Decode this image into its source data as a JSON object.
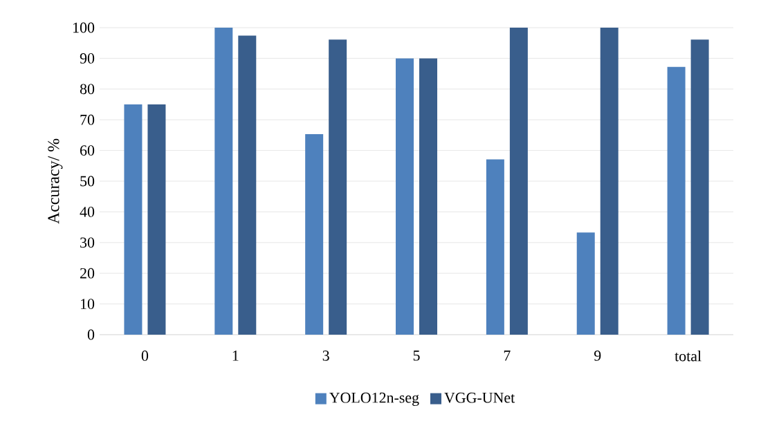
{
  "chart_data": {
    "type": "bar",
    "ylabel": "Accuracy/ %",
    "categories": [
      "0",
      "1",
      "3",
      "5",
      "7",
      "9",
      "total"
    ],
    "series": [
      {
        "name": "YOLO12n-seg",
        "color": "#4e81bd",
        "values": [
          75,
          100,
          65.3,
          90,
          57.1,
          33.3,
          87.2
        ]
      },
      {
        "name": "VGG-UNet",
        "color": "#395e8c",
        "values": [
          75,
          97.4,
          96.1,
          90,
          100,
          100,
          96.1
        ]
      }
    ],
    "ylim": [
      0,
      100
    ],
    "yticks": [
      0,
      10,
      20,
      30,
      40,
      50,
      60,
      70,
      80,
      90,
      100
    ],
    "grid": "y",
    "legend": "bottom"
  }
}
